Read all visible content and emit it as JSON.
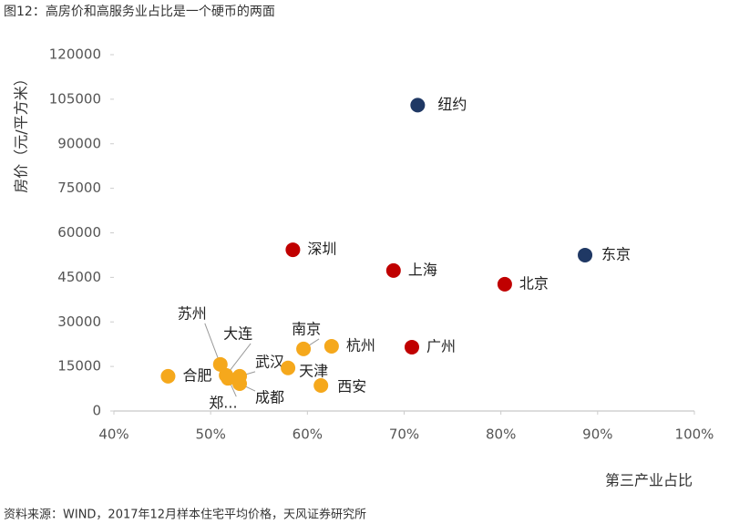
{
  "title": "图12：高房价和高服务业占比是一个硬币的两面",
  "source": "资料来源：WIND，2017年12月样本住宅平均价格，天风证券研究所",
  "chart_data": {
    "type": "scatter",
    "x_label": "第三产业占比",
    "y_label": "房价（元/平方米）",
    "point_labels": [
      "纽约",
      "东京",
      "深圳",
      "上海",
      "北京",
      "广州",
      "合肥",
      "苏州",
      "大连",
      "郑...",
      "武汉",
      "天津",
      "成都",
      "南京",
      "杭州",
      "西安"
    ],
    "x": [
      71.4,
      88.7,
      58.5,
      68.9,
      80.4,
      70.8,
      45.6,
      51.0,
      51.6,
      51.8,
      53.0,
      58.0,
      53.0,
      59.6,
      62.5,
      61.4
    ],
    "values": [
      103000,
      52500,
      54300,
      47300,
      42700,
      21500,
      11700,
      15700,
      12000,
      11000,
      11700,
      14500,
      9200,
      20900,
      21800,
      8600
    ],
    "point_colors": [
      "#1f3864",
      "#1f3864",
      "#c00000",
      "#c00000",
      "#c00000",
      "#c00000",
      "#f5a81c",
      "#f5a81c",
      "#f5a81c",
      "#f5a81c",
      "#f5a81c",
      "#f5a81c",
      "#f5a81c",
      "#f5a81c",
      "#f5a81c",
      "#f5a81c"
    ],
    "xlim": [
      40,
      100
    ],
    "xticks": [
      {
        "value": 40,
        "label": "40%"
      },
      {
        "value": 50,
        "label": "50%"
      },
      {
        "value": 60,
        "label": "60%"
      },
      {
        "value": 70,
        "label": "70%"
      },
      {
        "value": 80,
        "label": "80%"
      },
      {
        "value": 90,
        "label": "90%"
      },
      {
        "value": 100,
        "label": "100%"
      }
    ],
    "ylim": [
      0,
      120000
    ],
    "yticks": [
      0,
      15000,
      30000,
      45000,
      60000,
      75000,
      90000,
      105000,
      120000
    ]
  }
}
